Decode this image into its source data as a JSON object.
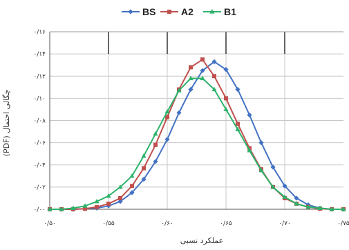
{
  "chart_data": {
    "type": "line",
    "xlabel": "عملکرد نسبی",
    "ylabel": "(PDF) چگالی احتمال",
    "xlim": [
      0.5,
      0.75
    ],
    "ylim": [
      0,
      0.16
    ],
    "x_ticks": [
      0.5,
      0.55,
      0.6,
      0.65,
      0.7,
      0.75
    ],
    "x_tick_labels": [
      "۰/۵۰",
      "۰/۵۵",
      "۰/۶۰",
      "۰/۶۵",
      "۰/۷۰",
      "۰/۷۵"
    ],
    "y_ticks": [
      0,
      0.02,
      0.04,
      0.06,
      0.08,
      0.1,
      0.12,
      0.14,
      0.16
    ],
    "y_tick_labels": [
      "۰/۰۰",
      "۰/۰۲",
      "۰/۰۴",
      "۰/۰۶",
      "۰/۰۸",
      "۰/۱۰",
      "۰/۱۲",
      "۰/۱۴",
      "۰/۱۶"
    ],
    "grid": true,
    "legend_position": "top",
    "x": [
      0.5,
      0.51,
      0.52,
      0.53,
      0.54,
      0.55,
      0.56,
      0.57,
      0.58,
      0.59,
      0.6,
      0.61,
      0.62,
      0.63,
      0.64,
      0.65,
      0.66,
      0.67,
      0.68,
      0.69,
      0.7,
      0.71,
      0.72,
      0.73,
      0.74,
      0.75
    ],
    "series": [
      {
        "name": "BS",
        "color": "#4472C4",
        "marker": "diamond",
        "values": [
          0.0,
          0.0,
          0.0,
          0.0005,
          0.001,
          0.003,
          0.007,
          0.015,
          0.027,
          0.043,
          0.063,
          0.087,
          0.108,
          0.125,
          0.133,
          0.126,
          0.108,
          0.085,
          0.06,
          0.038,
          0.021,
          0.01,
          0.004,
          0.001,
          0.0,
          0.0
        ]
      },
      {
        "name": "A2",
        "color": "#C0504D",
        "marker": "square",
        "values": [
          0.0,
          0.0,
          0.0,
          0.0005,
          0.002,
          0.005,
          0.01,
          0.021,
          0.037,
          0.058,
          0.083,
          0.108,
          0.128,
          0.135,
          0.12,
          0.1,
          0.077,
          0.055,
          0.036,
          0.02,
          0.01,
          0.005,
          0.002,
          0.0005,
          0.0,
          0.0
        ]
      },
      {
        "name": "B1",
        "color": "#2DB36B",
        "marker": "triangle",
        "values": [
          0.0,
          0.0,
          0.001,
          0.003,
          0.007,
          0.012,
          0.02,
          0.03,
          0.048,
          0.068,
          0.088,
          0.107,
          0.118,
          0.118,
          0.108,
          0.09,
          0.072,
          0.053,
          0.035,
          0.02,
          0.011,
          0.005,
          0.002,
          0.001,
          0.0,
          0.0
        ]
      }
    ]
  }
}
